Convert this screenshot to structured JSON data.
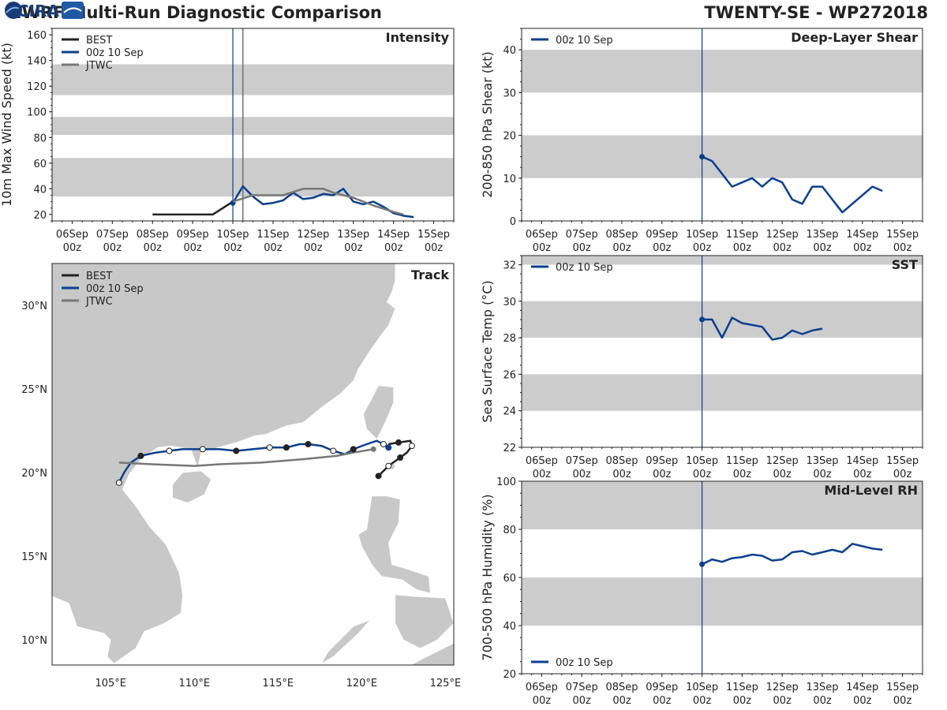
{
  "header": {
    "title": "HWRF Multi-Run Diagnostic Comparison",
    "storm": "TWENTY-SE - WP272018"
  },
  "colors": {
    "best": "#222222",
    "run": "#0a3f8f",
    "jtwc": "#777777",
    "band": "#cccccc",
    "land": "#c8c8c8"
  },
  "logo_text": "CIRA",
  "time_ticks": {
    "days": [
      "06Sep",
      "07Sep",
      "08Sep",
      "09Sep",
      "10Sep",
      "11Sep",
      "12Sep",
      "13Sep",
      "14Sep",
      "15Sep"
    ],
    "hour": "00z"
  },
  "legend": {
    "best": "BEST",
    "run": "00z 10 Sep",
    "jtwc": "JTWC"
  },
  "chart_data": [
    {
      "id": "intensity",
      "type": "line",
      "title": "Intensity",
      "ylabel": "10m Max Wind Speed (kt)",
      "xlim_days": [
        5.5,
        15.5
      ],
      "ylim": [
        15,
        165
      ],
      "yticks": [
        20,
        40,
        60,
        80,
        100,
        120,
        140,
        160
      ],
      "bands": [
        [
          34,
          64
        ],
        [
          82,
          96
        ],
        [
          113,
          137
        ]
      ],
      "vlines": [
        10.0,
        10.25
      ],
      "series": [
        {
          "name": "BEST",
          "x": [
            8.0,
            9.5,
            10.0
          ],
          "y": [
            20,
            20,
            30
          ]
        },
        {
          "name": "00z 10 Sep",
          "x": [
            10.0,
            10.25,
            10.5,
            10.75,
            11.0,
            11.25,
            11.5,
            11.75,
            12.0,
            12.25,
            12.5,
            12.75,
            13.0,
            13.25,
            13.5,
            13.75,
            14.0,
            14.25,
            14.5
          ],
          "y": [
            29,
            42,
            34,
            28,
            29,
            31,
            37,
            32,
            33,
            36,
            35,
            40,
            30,
            28,
            30,
            26,
            21,
            19,
            18
          ]
        },
        {
          "name": "JTWC",
          "x": [
            10.0,
            10.5,
            11.25,
            11.75,
            12.25,
            12.5,
            13.0,
            13.5,
            14.0,
            14.25
          ],
          "y": [
            30,
            35,
            35,
            40,
            40,
            37,
            33,
            27,
            22,
            20
          ]
        }
      ]
    },
    {
      "id": "shear",
      "type": "line",
      "title": "Deep-Layer Shear",
      "ylabel": "200-850 hPa Shear (kt)",
      "xlim_days": [
        5.5,
        15.5
      ],
      "ylim": [
        0,
        45
      ],
      "yticks": [
        0,
        10,
        20,
        30,
        40
      ],
      "bands": [
        [
          10,
          20
        ],
        [
          30,
          40
        ]
      ],
      "vlines": [
        10.0
      ],
      "series": [
        {
          "name": "00z 10 Sep",
          "x": [
            10.0,
            10.25,
            10.75,
            11.25,
            11.5,
            11.75,
            12.0,
            12.25,
            12.5,
            12.75,
            13.0,
            13.5,
            14.25,
            14.5
          ],
          "y": [
            15,
            14,
            8,
            10,
            8,
            10,
            9,
            5,
            4,
            8,
            8,
            2,
            8,
            7
          ]
        }
      ]
    },
    {
      "id": "sst",
      "type": "line",
      "title": "SST",
      "ylabel": "Sea Surface Temp (°C)",
      "xlim_days": [
        5.5,
        15.5
      ],
      "ylim": [
        22,
        32.5
      ],
      "yticks": [
        22,
        24,
        26,
        28,
        30,
        32
      ],
      "bands": [
        [
          24,
          26
        ],
        [
          28,
          30
        ],
        [
          32,
          32.5
        ]
      ],
      "vlines": [
        10.0
      ],
      "series": [
        {
          "name": "00z 10 Sep",
          "x": [
            10.0,
            10.25,
            10.5,
            10.75,
            11.0,
            11.25,
            11.5,
            11.75,
            12.0,
            12.25,
            12.5,
            12.75,
            13.0
          ],
          "y": [
            29.0,
            29.0,
            28.0,
            29.1,
            28.8,
            28.7,
            28.6,
            27.9,
            28.0,
            28.4,
            28.2,
            28.4,
            28.5
          ]
        }
      ]
    },
    {
      "id": "rh",
      "type": "line",
      "title": "Mid-Level RH",
      "ylabel": "700-500 hPa Humidity (%)",
      "xlim_days": [
        5.5,
        15.5
      ],
      "ylim": [
        20,
        100
      ],
      "yticks": [
        20,
        40,
        60,
        80,
        100
      ],
      "bands": [
        [
          40,
          60
        ],
        [
          80,
          100
        ]
      ],
      "vlines": [
        10.0
      ],
      "series": [
        {
          "name": "00z 10 Sep",
          "x": [
            10.0,
            10.25,
            10.5,
            10.75,
            11.0,
            11.25,
            11.5,
            11.75,
            12.0,
            12.25,
            12.5,
            12.75,
            13.0,
            13.25,
            13.5,
            13.75,
            14.0,
            14.25,
            14.5
          ],
          "y": [
            65.5,
            67.5,
            66.5,
            68,
            68.5,
            69.5,
            69,
            67,
            67.5,
            70.5,
            71,
            69.5,
            70.5,
            71.5,
            70.5,
            74,
            73,
            72,
            71.5
          ]
        }
      ]
    },
    {
      "id": "track",
      "type": "scatter",
      "title": "Track",
      "xlim": [
        101.5,
        125.5
      ],
      "ylim": [
        8.5,
        32.5
      ],
      "xticks": [
        105,
        110,
        115,
        120,
        125
      ],
      "yticks": [
        10,
        15,
        20,
        25,
        30
      ],
      "xticklabels": [
        "105°E",
        "110°E",
        "115°E",
        "120°E",
        "125°E"
      ],
      "yticklabels": [
        "10°N",
        "15°N",
        "20°N",
        "25°N",
        "30°N"
      ],
      "series": [
        {
          "name": "BEST",
          "lon": [
            121.0,
            121.6,
            122.3,
            122.7,
            123.0,
            122.9,
            122.2,
            121.6
          ],
          "lat": [
            19.8,
            20.4,
            20.9,
            21.2,
            21.6,
            21.9,
            21.8,
            21.7
          ]
        },
        {
          "name": "00z 10 Sep",
          "lon": [
            121.6,
            121.3,
            120.9,
            120.3,
            119.5,
            119.0,
            118.3,
            117.6,
            116.8,
            116.3,
            115.5,
            114.5,
            113.5,
            112.5,
            111.5,
            110.5,
            109.3,
            108.5,
            107.7,
            106.8,
            106.2,
            105.8,
            105.5
          ],
          "lat": [
            21.5,
            21.7,
            21.9,
            21.7,
            21.4,
            21.1,
            21.3,
            21.6,
            21.7,
            21.7,
            21.5,
            21.5,
            21.4,
            21.3,
            21.4,
            21.4,
            21.4,
            21.3,
            21.2,
            21.0,
            20.6,
            20.0,
            19.4
          ]
        },
        {
          "name": "JTWC",
          "lon": [
            120.7,
            119.5,
            118.5,
            116.5,
            114.0,
            111.5,
            110.0,
            107.5,
            105.5
          ],
          "lat": [
            21.4,
            21.2,
            21.0,
            20.8,
            20.6,
            20.5,
            20.4,
            20.5,
            20.6
          ]
        }
      ]
    }
  ]
}
